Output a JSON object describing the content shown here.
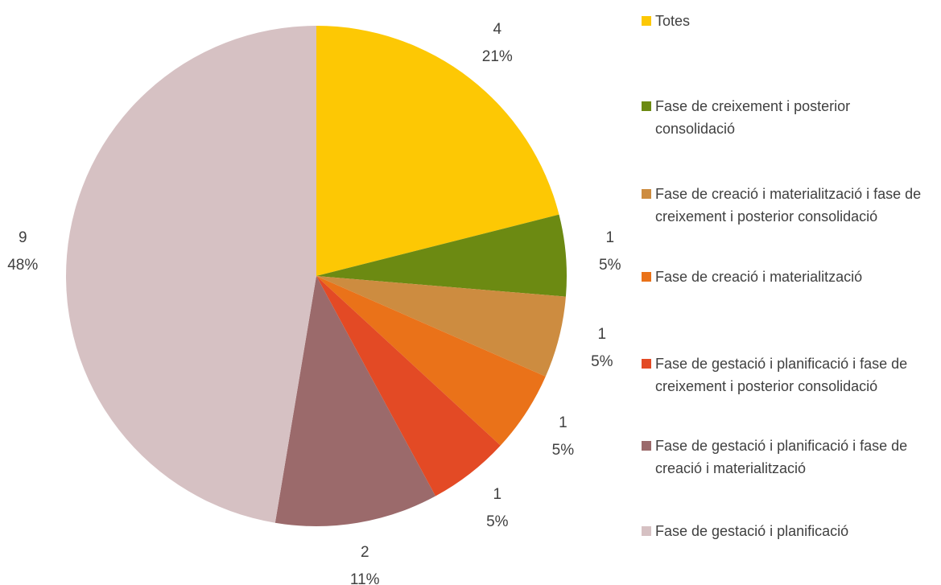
{
  "chart_data": {
    "type": "pie",
    "categories": [
      "Totes",
      "Fase de creixement i posterior consolidació",
      "Fase de creació i materialització i fase de creixement i posterior consolidació",
      "Fase de creació i materialització",
      "Fase de gestació i planificació i fase de creixement i posterior consolidació",
      "Fase de gestació i planificació i fase de creació i materialització",
      "Fase de gestació i planificació"
    ],
    "values": [
      4,
      1,
      1,
      1,
      1,
      2,
      9
    ],
    "percent_labels": [
      "21%",
      "5%",
      "5%",
      "5%",
      "5%",
      "11%",
      "48%"
    ],
    "colors": [
      "#fdc804",
      "#6c8a12",
      "#cd8c40",
      "#ea7219",
      "#e34a25",
      "#9b6a6b",
      "#d6c1c3"
    ],
    "legend": "right"
  }
}
